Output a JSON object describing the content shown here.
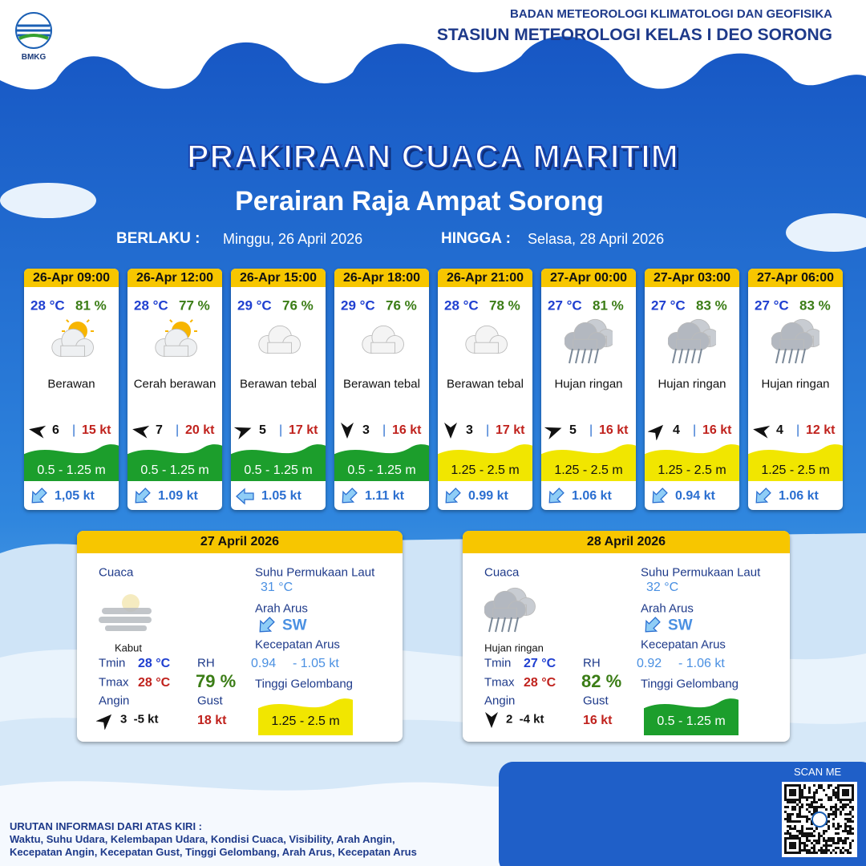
{
  "header": {
    "logo_text": "BMKG",
    "org": "BADAN METEOROLOGI KLIMATOLOGI DAN GEOFISIKA",
    "station": "STASIUN METEOROLOGI KELAS I DEO SORONG"
  },
  "title": "PRAKIRAAN CUACA MARITIM",
  "subtitle": "Perairan Raja Ampat Sorong",
  "validity": {
    "from_label": "BERLAKU :",
    "from": "Minggu, 26 April 2026",
    "to_label": "HINGGA :",
    "to": "Selasa, 28 April 2026"
  },
  "cards": [
    {
      "time": "26-Apr 09:00",
      "temp": "28 °C",
      "rh": "81 %",
      "weather": "Berawan",
      "wind": "6",
      "gust": "15 kt",
      "wave": "0.5 - 1.25 m",
      "current": "1,05 kt"
    },
    {
      "time": "26-Apr 12:00",
      "temp": "28 °C",
      "rh": "77 %",
      "weather": "Cerah berawan",
      "wind": "7",
      "gust": "20 kt",
      "wave": "0.5 - 1.25 m",
      "current": "1.09 kt"
    },
    {
      "time": "26-Apr 15:00",
      "temp": "29 °C",
      "rh": "76 %",
      "weather": "Berawan tebal",
      "wind": "5",
      "gust": "17 kt",
      "wave": "0.5 - 1.25 m",
      "current": "1.05 kt"
    },
    {
      "time": "26-Apr 18:00",
      "temp": "29 °C",
      "rh": "76 %",
      "weather": "Berawan tebal",
      "wind": "3",
      "gust": "16 kt",
      "wave": "0.5 - 1.25 m",
      "current": "1.11 kt"
    },
    {
      "time": "26-Apr 21:00",
      "temp": "28 °C",
      "rh": "78 %",
      "weather": "Berawan tebal",
      "wind": "3",
      "gust": "17 kt",
      "wave": "1.25 - 2.5 m",
      "current": "0.99 kt"
    },
    {
      "time": "27-Apr 00:00",
      "temp": "27 °C",
      "rh": "81 %",
      "weather": "Hujan ringan",
      "wind": "5",
      "gust": "16 kt",
      "wave": "1.25 - 2.5 m",
      "current": "1.06 kt"
    },
    {
      "time": "27-Apr 03:00",
      "temp": "27 °C",
      "rh": "83 %",
      "weather": "Hujan ringan",
      "wind": "4",
      "gust": "16 kt",
      "wave": "1.25 - 2.5 m",
      "current": "0.94 kt"
    },
    {
      "time": "27-Apr 06:00",
      "temp": "27 °C",
      "rh": "83 %",
      "weather": "Hujan ringan",
      "wind": "4",
      "gust": "12 kt",
      "wave": "1.25 - 2.5 m",
      "current": "1.06 kt"
    }
  ],
  "days": [
    {
      "date": "27 April 2026",
      "weather_label": "Cuaca",
      "weather": "Kabut",
      "tmin_label": "Tmin",
      "tmin": "28 °C",
      "tmax_label": "Tmax",
      "tmax": "28 °C",
      "wind_label": "Angin",
      "wind": "3  -5 kt",
      "rh_label": "RH",
      "rh": "79 %",
      "gust_label": "Gust",
      "gust": "18 kt",
      "sst_label": "Suhu Permukaan Laut",
      "sst": "31 °C",
      "current_dir_label": "Arah Arus",
      "current_dir": "SW",
      "current_speed_label": "Kecepatan Arus",
      "current_min": "0.94",
      "current_max": "- 1.05 kt",
      "wave_label": "Tinggi Gelombang",
      "wave": "1.25 - 2.5 m"
    },
    {
      "date": "28 April 2026",
      "weather_label": "Cuaca",
      "weather": "Hujan ringan",
      "tmin_label": "Tmin",
      "tmin": "27 °C",
      "tmax_label": "Tmax",
      "tmax": "28 °C",
      "wind_label": "Angin",
      "wind": "2  -4 kt",
      "rh_label": "RH",
      "rh": "82 %",
      "gust_label": "Gust",
      "gust": "16 kt",
      "sst_label": "Suhu Permukaan Laut",
      "sst": "32 °C",
      "current_dir_label": "Arah Arus",
      "current_dir": "SW",
      "current_speed_label": "Kecepatan Arus",
      "current_min": "0.92",
      "current_max": "- 1.06 kt",
      "wave_label": "Tinggi Gelombang",
      "wave": "0.5 - 1.25 m"
    }
  ],
  "footer": {
    "scan": "SCAN ME",
    "legend_title": "URUTAN INFORMASI DARI ATAS KIRI :",
    "legend_line1": "Waktu, Suhu Udara, Kelembapan Udara, Kondisi Cuaca, Visibility, Arah Angin,",
    "legend_line2": "Kecepatan Angin, Kecepatan Gust, Tinggi Gelombang, Arah Arus, Kecepatan Arus"
  }
}
